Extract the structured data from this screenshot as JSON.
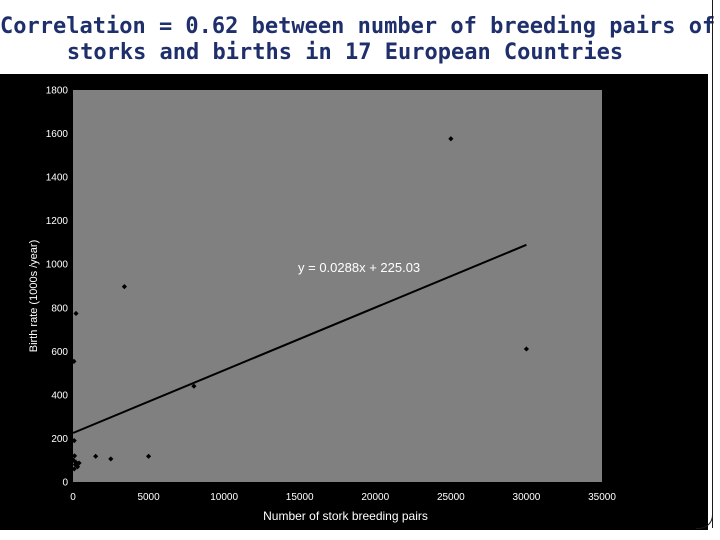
{
  "slide": {
    "title_line1": "Correlation = 0.62 between number of breeding pairs of",
    "title_line2": "storks and births in 17 European Countries"
  },
  "chart_data": {
    "type": "scatter",
    "title": "",
    "xlabel": "Number of stork breeding pairs",
    "ylabel": "Birth rate (1000s /year)",
    "xlim": [
      0,
      35000
    ],
    "ylim": [
      0,
      1800
    ],
    "xticks": [
      0,
      5000,
      10000,
      15000,
      20000,
      25000,
      30000,
      35000
    ],
    "yticks": [
      0,
      200,
      400,
      600,
      800,
      1000,
      1200,
      1400,
      1600,
      1800
    ],
    "grid": false,
    "points": [
      {
        "x": 25000,
        "y": 1576
      },
      {
        "x": 3400,
        "y": 897
      },
      {
        "x": 30000,
        "y": 611
      },
      {
        "x": 200,
        "y": 774
      },
      {
        "x": 60,
        "y": 554
      },
      {
        "x": 8000,
        "y": 440
      },
      {
        "x": 5000,
        "y": 118
      },
      {
        "x": 1500,
        "y": 118
      },
      {
        "x": 2500,
        "y": 106
      },
      {
        "x": 80,
        "y": 190
      },
      {
        "x": 100,
        "y": 120
      },
      {
        "x": 80,
        "y": 60
      },
      {
        "x": 200,
        "y": 90
      },
      {
        "x": 400,
        "y": 87
      },
      {
        "x": 150,
        "y": 80
      },
      {
        "x": 30,
        "y": 100
      },
      {
        "x": 300,
        "y": 70
      }
    ],
    "trendline": {
      "slope": 0.0288,
      "intercept": 225.03,
      "x_range": [
        0,
        30000
      ],
      "label": "y = 0.0288x + 225.03"
    },
    "colors": {
      "background": "#000000",
      "plot_area": "#808080",
      "marker": "#000000",
      "trendline": "#000000",
      "axis_text": "#ffffff",
      "title": "#1f2f6b"
    }
  }
}
